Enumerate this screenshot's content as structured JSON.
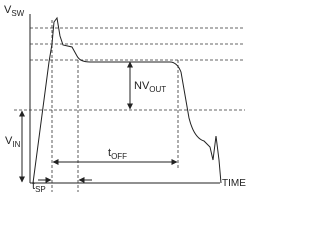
{
  "labels": {
    "vsw": {
      "main": "V",
      "sub": "SW"
    },
    "nvout": {
      "main": "NV",
      "sub": "OUT"
    },
    "vin": {
      "main": "V",
      "sub": "IN"
    },
    "toff": {
      "main": "t",
      "sub": "OFF"
    },
    "tsp": {
      "main": "t",
      "sub": "SP"
    },
    "time": "TIME"
  }
}
